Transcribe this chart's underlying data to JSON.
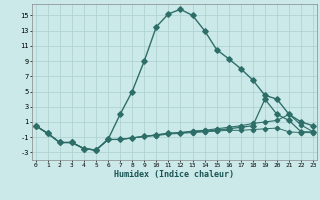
{
  "xlabel": "Humidex (Indice chaleur)",
  "bg_color": "#cce9e9",
  "grid_color": "#aacfcf",
  "line_color": "#2d6e68",
  "xlim": [
    -0.3,
    23.3
  ],
  "ylim": [
    -4.0,
    16.5
  ],
  "xtick_vals": [
    0,
    1,
    2,
    3,
    4,
    5,
    6,
    7,
    8,
    9,
    10,
    11,
    12,
    13,
    14,
    15,
    16,
    17,
    18,
    19,
    20,
    21,
    22,
    23
  ],
  "ytick_vals": [
    -3,
    -1,
    1,
    3,
    5,
    7,
    9,
    11,
    13,
    15
  ],
  "curve1_x": [
    0,
    1,
    2,
    3,
    4,
    5,
    6,
    7,
    8,
    9,
    10,
    11,
    12,
    13,
    14,
    15,
    16,
    17,
    18,
    19,
    20,
    21,
    22,
    23
  ],
  "curve1_y": [
    0.5,
    -0.5,
    -1.7,
    -1.7,
    -2.5,
    -2.7,
    -1.3,
    2.0,
    5.0,
    9.0,
    13.5,
    15.2,
    15.8,
    15.0,
    13.0,
    10.5,
    9.3,
    8.0,
    6.5,
    4.5,
    4.0,
    2.0,
    1.0,
    0.5
  ],
  "curve2_x": [
    0,
    1,
    2,
    3,
    4,
    5,
    6,
    7,
    8,
    9,
    10,
    11,
    12,
    13,
    14,
    15,
    16,
    17,
    18,
    19,
    20,
    21,
    22,
    23
  ],
  "curve2_y": [
    0.5,
    -0.5,
    -1.7,
    -1.7,
    -2.5,
    -2.7,
    -1.3,
    -1.3,
    -1.1,
    -0.9,
    -0.7,
    -0.5,
    -0.4,
    -0.3,
    -0.2,
    -0.1,
    0.1,
    0.3,
    0.5,
    4.0,
    2.0,
    1.2,
    -0.3,
    -0.3
  ],
  "curve3_x": [
    0,
    1,
    2,
    3,
    4,
    5,
    6,
    7,
    8,
    9,
    10,
    11,
    12,
    13,
    14,
    15,
    16,
    17,
    18,
    19,
    20,
    21,
    22,
    23
  ],
  "curve3_y": [
    0.5,
    -0.5,
    -1.7,
    -1.7,
    -2.5,
    -2.7,
    -1.3,
    -1.3,
    -1.1,
    -0.9,
    -0.7,
    -0.5,
    -0.4,
    -0.2,
    -0.1,
    0.1,
    0.3,
    0.5,
    0.8,
    1.0,
    1.2,
    2.0,
    0.6,
    -0.3
  ],
  "curve4_x": [
    0,
    1,
    2,
    3,
    4,
    5,
    6,
    7,
    8,
    9,
    10,
    11,
    12,
    13,
    14,
    15,
    16,
    17,
    18,
    19,
    20,
    21,
    22,
    23
  ],
  "curve4_y": [
    0.5,
    -0.5,
    -1.7,
    -1.7,
    -2.5,
    -2.7,
    -1.3,
    -1.3,
    -1.1,
    -0.9,
    -0.8,
    -0.6,
    -0.5,
    -0.4,
    -0.3,
    -0.2,
    -0.1,
    -0.1,
    -0.0,
    0.1,
    0.2,
    -0.3,
    -0.4,
    -0.4
  ]
}
